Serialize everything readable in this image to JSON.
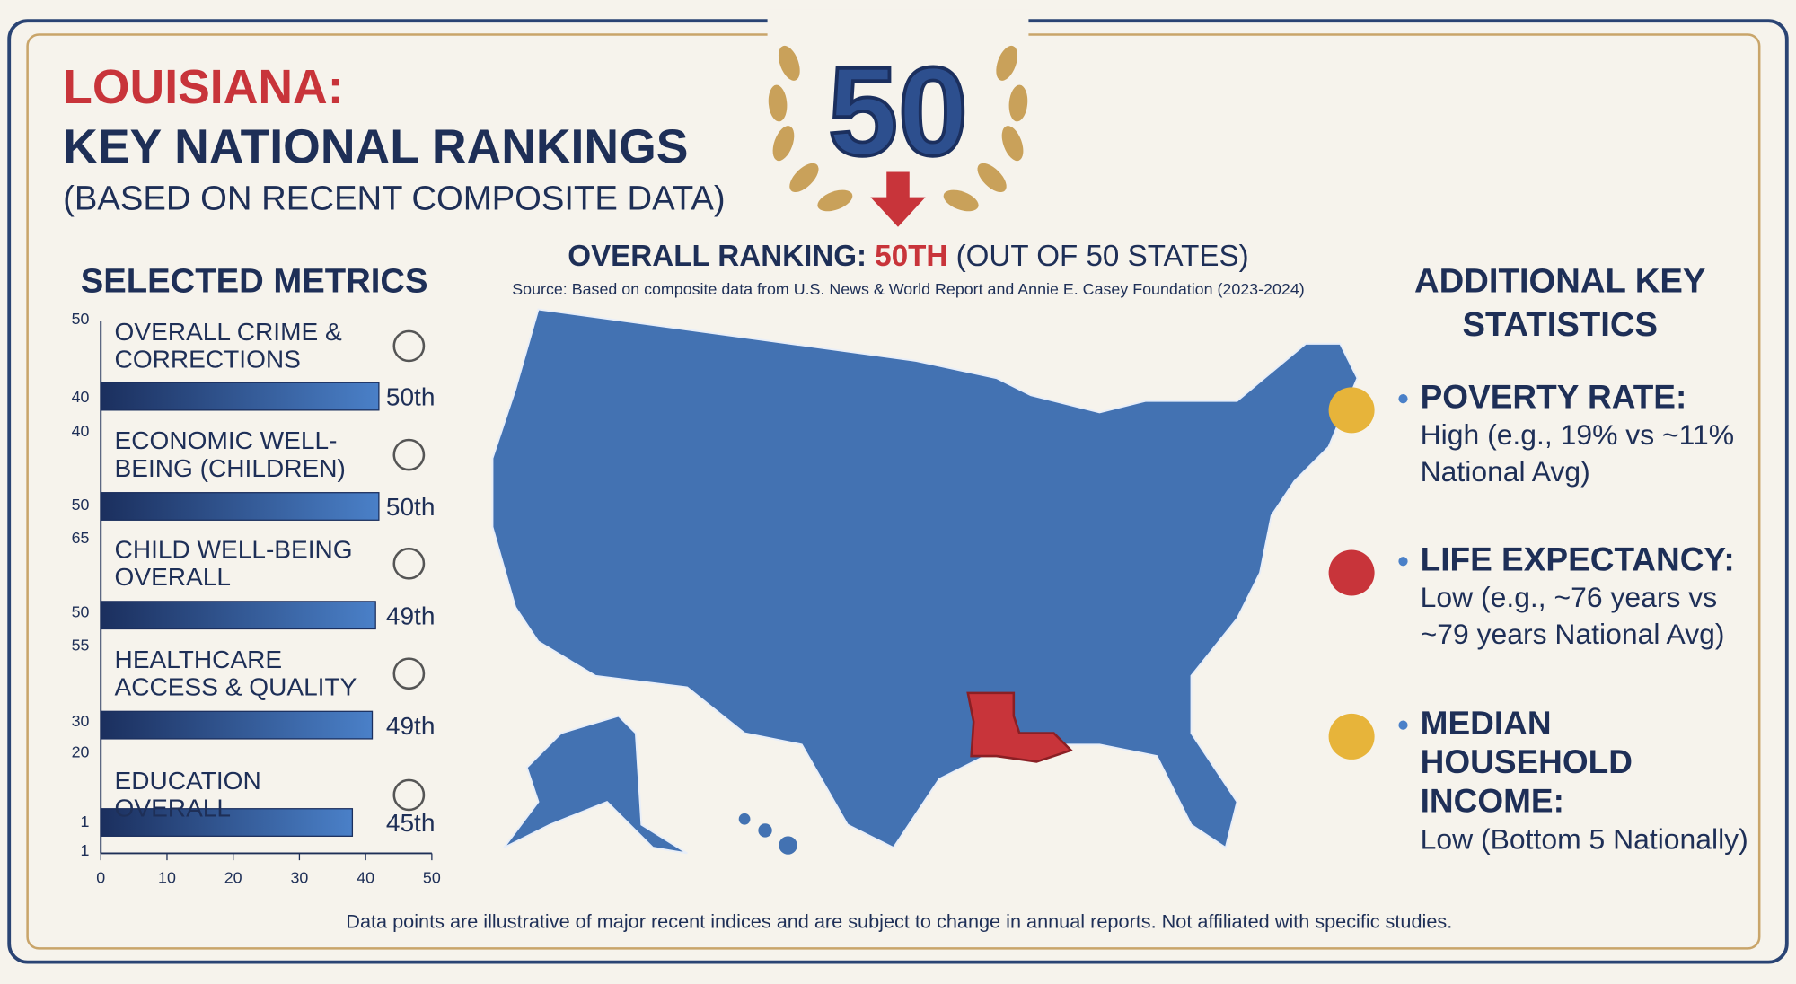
{
  "header": {
    "title_state": "LOUISIANA:",
    "title_main": "KEY NATIONAL RANKINGS",
    "subtitle": "(BASED ON RECENT COMPOSITE DATA)"
  },
  "badge": "50",
  "overall": {
    "prefix": "OVERALL RANKING:",
    "rank": "50TH",
    "suffix": "(OUT OF 50 STATES)",
    "source": "Source: Based on composite data from U.S. News & World Report and Annie E. Casey Foundation (2023-2024)"
  },
  "chart_data": {
    "type": "bar",
    "orientation": "horizontal",
    "title": "SELECTED METRICS",
    "categories": [
      "OVERALL CRIME & CORRECTIONS",
      "ECONOMIC WELL-BEING (CHILDREN)",
      "CHILD WELL-BEING OVERALL",
      "HEALTHCARE ACCESS & QUALITY",
      "EDUCATION OVERALL"
    ],
    "values": [
      42,
      42,
      41.5,
      41,
      38
    ],
    "rank_labels": [
      "50th",
      "50th",
      "49th",
      "49th",
      "45th"
    ],
    "color": "#4a80c8",
    "xlim": [
      0,
      50
    ],
    "xticks": [
      0,
      10,
      20,
      30,
      40,
      50
    ],
    "left_labels": [
      "50",
      "40",
      "40",
      "50",
      "65",
      "50",
      "55",
      "30",
      "20",
      "1",
      "1"
    ]
  },
  "stats": {
    "title": "ADDITIONAL KEY STATISTICS",
    "items": [
      {
        "label": "POVERTY RATE:",
        "text": "High (e.g., 19% vs ~11% National Avg)"
      },
      {
        "label": "LIFE EXPECTANCY:",
        "text": "Low (e.g., ~76 years vs ~79 years National Avg)"
      },
      {
        "label": "MEDIAN HOUSEHOLD INCOME:",
        "text": "Low (Bottom 5 Nationally)"
      }
    ]
  },
  "footer": "Data points are illustrative of major recent indices and are subject to change in annual reports. Not affiliated with specific studies."
}
